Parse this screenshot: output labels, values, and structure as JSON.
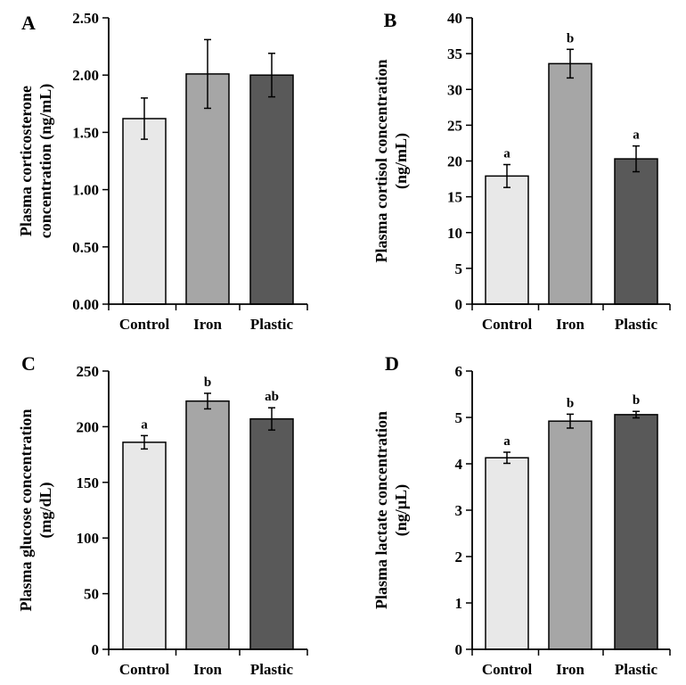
{
  "colors": {
    "control": "#e8e8e8",
    "iron": "#a6a6a6",
    "plastic": "#595959",
    "axis": "#000000"
  },
  "chart_data": [
    {
      "panel": "A",
      "type": "bar",
      "categories": [
        "Control",
        "Iron",
        "Plastic"
      ],
      "values": [
        1.62,
        2.01,
        2.0
      ],
      "errors": [
        0.18,
        0.3,
        0.19
      ],
      "sig": [],
      "ylabel": [
        "Plasma corticosterone",
        "concentration (ng/mL)"
      ],
      "ylim": [
        0,
        2.5
      ],
      "yticks": [
        "0.00",
        "0.50",
        "1.00",
        "1.50",
        "2.00",
        "2.50"
      ],
      "ytick_values": [
        0,
        0.5,
        1,
        1.5,
        2,
        2.5
      ]
    },
    {
      "panel": "B",
      "type": "bar",
      "categories": [
        "Control",
        "Iron",
        "Plastic"
      ],
      "values": [
        17.9,
        33.6,
        20.3
      ],
      "errors": [
        1.6,
        2.0,
        1.8
      ],
      "sig": [
        "a",
        "b",
        "a"
      ],
      "ylabel": [
        "Plasma cortisol concentration",
        "(ng/mL)"
      ],
      "ylim": [
        0,
        40
      ],
      "yticks": [
        "0",
        "5",
        "10",
        "15",
        "20",
        "25",
        "30",
        "35",
        "40"
      ],
      "ytick_values": [
        0,
        5,
        10,
        15,
        20,
        25,
        30,
        35,
        40
      ]
    },
    {
      "panel": "C",
      "type": "bar",
      "categories": [
        "Control",
        "Iron",
        "Plastic"
      ],
      "values": [
        186,
        223,
        207
      ],
      "errors": [
        6,
        7,
        10
      ],
      "sig": [
        "a",
        "b",
        "ab"
      ],
      "ylabel": [
        "Plasma glucose concentration",
        "(mg/dL)"
      ],
      "ylim": [
        0,
        250
      ],
      "yticks": [
        "0",
        "50",
        "100",
        "150",
        "200",
        "250"
      ],
      "ytick_values": [
        0,
        50,
        100,
        150,
        200,
        250
      ]
    },
    {
      "panel": "D",
      "type": "bar",
      "categories": [
        "Control",
        "Iron",
        "Plastic"
      ],
      "values": [
        4.13,
        4.92,
        5.06
      ],
      "errors": [
        0.12,
        0.15,
        0.07
      ],
      "sig": [
        "a",
        "b",
        "b"
      ],
      "ylabel": [
        "Plasma lactate concentration",
        "(ng/µL)"
      ],
      "ylim": [
        0,
        6
      ],
      "yticks": [
        "0",
        "1",
        "2",
        "3",
        "4",
        "5",
        "6"
      ],
      "ytick_values": [
        0,
        1,
        2,
        3,
        4,
        5,
        6
      ]
    }
  ]
}
